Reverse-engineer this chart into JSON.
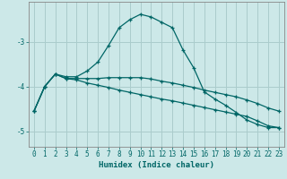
{
  "xlabel": "Humidex (Indice chaleur)",
  "bg_color": "#cce8e8",
  "grid_color": "#aacccc",
  "line_color": "#006666",
  "x_values": [
    0,
    1,
    2,
    3,
    4,
    5,
    6,
    7,
    8,
    9,
    10,
    11,
    12,
    13,
    14,
    15,
    16,
    17,
    18,
    19,
    20,
    21,
    22,
    23
  ],
  "line1": [
    -4.55,
    -4.0,
    -3.72,
    -3.78,
    -3.78,
    -3.65,
    -3.45,
    -3.08,
    -2.68,
    -2.5,
    -2.38,
    -2.44,
    -2.56,
    -2.68,
    -3.18,
    -3.58,
    -4.12,
    -4.28,
    -4.42,
    -4.58,
    -4.75,
    -4.85,
    -4.92,
    -4.92
  ],
  "line2": [
    -4.55,
    -4.0,
    -3.72,
    -3.82,
    -3.82,
    -3.82,
    -3.82,
    -3.8,
    -3.8,
    -3.8,
    -3.8,
    -3.83,
    -3.88,
    -3.92,
    -3.97,
    -4.02,
    -4.08,
    -4.13,
    -4.18,
    -4.23,
    -4.3,
    -4.38,
    -4.48,
    -4.55
  ],
  "line3": [
    -4.55,
    -4.0,
    -3.72,
    -3.82,
    -3.85,
    -3.92,
    -3.97,
    -4.02,
    -4.08,
    -4.13,
    -4.18,
    -4.23,
    -4.28,
    -4.32,
    -4.37,
    -4.42,
    -4.47,
    -4.52,
    -4.57,
    -4.62,
    -4.67,
    -4.77,
    -4.88,
    -4.92
  ],
  "ylim": [
    -5.35,
    -2.1
  ],
  "xlim": [
    -0.5,
    23.5
  ],
  "yticks": [
    -5,
    -4,
    -3
  ],
  "xticks": [
    0,
    1,
    2,
    3,
    4,
    5,
    6,
    7,
    8,
    9,
    10,
    11,
    12,
    13,
    14,
    15,
    16,
    17,
    18,
    19,
    20,
    21,
    22,
    23
  ]
}
